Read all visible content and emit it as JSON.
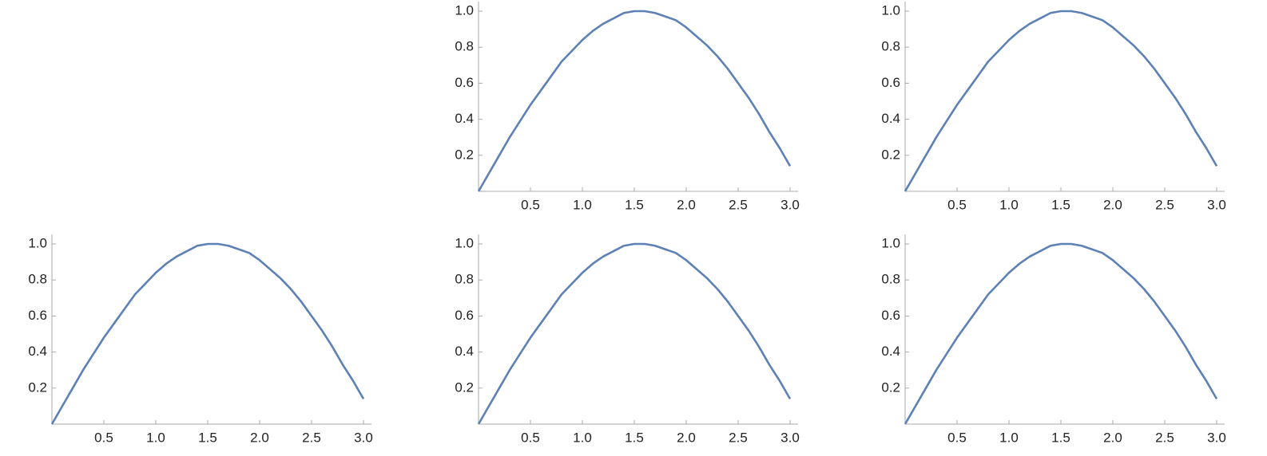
{
  "chart_data": [
    {
      "type": "line",
      "x": [
        0,
        0.1,
        0.2,
        0.3,
        0.4,
        0.5,
        0.6,
        0.7,
        0.8,
        0.9,
        1.0,
        1.1,
        1.2,
        1.3,
        1.4,
        1.5,
        1.6,
        1.7,
        1.8,
        1.9,
        2.0,
        2.1,
        2.2,
        2.3,
        2.4,
        2.5,
        2.6,
        2.7,
        2.8,
        2.9,
        3.0
      ],
      "values": [
        0,
        0.1,
        0.2,
        0.3,
        0.39,
        0.48,
        0.56,
        0.64,
        0.72,
        0.78,
        0.84,
        0.89,
        0.93,
        0.96,
        0.99,
        1.0,
        1.0,
        0.99,
        0.97,
        0.95,
        0.91,
        0.86,
        0.81,
        0.75,
        0.68,
        0.6,
        0.52,
        0.43,
        0.33,
        0.24,
        0.14
      ],
      "color": "#5e81b5",
      "xlim": [
        0,
        3
      ],
      "ylim": [
        0,
        1
      ],
      "xticks": [
        {
          "value": 0.5,
          "label": "0.5"
        },
        {
          "value": 1,
          "label": "1.0"
        },
        {
          "value": 1.5,
          "label": "1.5"
        },
        {
          "value": 2,
          "label": "2.0"
        },
        {
          "value": 2.5,
          "label": "2.5"
        },
        {
          "value": 3,
          "label": "3.0"
        }
      ],
      "yticks": [
        {
          "value": 0.2,
          "label": "0.2"
        },
        {
          "value": 0.4,
          "label": "0.4"
        },
        {
          "value": 0.6,
          "label": "0.6"
        },
        {
          "value": 0.8,
          "label": "0.8"
        },
        {
          "value": 1,
          "label": "1.0"
        }
      ]
    },
    {
      "type": "line",
      "x": [
        0,
        0.1,
        0.2,
        0.3,
        0.4,
        0.5,
        0.6,
        0.7,
        0.8,
        0.9,
        1.0,
        1.1,
        1.2,
        1.3,
        1.4,
        1.5,
        1.6,
        1.7,
        1.8,
        1.9,
        2.0,
        2.1,
        2.2,
        2.3,
        2.4,
        2.5,
        2.6,
        2.7,
        2.8,
        2.9,
        3.0
      ],
      "values": [
        0,
        0.1,
        0.2,
        0.3,
        0.39,
        0.48,
        0.56,
        0.64,
        0.72,
        0.78,
        0.84,
        0.89,
        0.93,
        0.96,
        0.99,
        1.0,
        1.0,
        0.99,
        0.97,
        0.95,
        0.91,
        0.86,
        0.81,
        0.75,
        0.68,
        0.6,
        0.52,
        0.43,
        0.33,
        0.24,
        0.14
      ],
      "color": "#5e81b5",
      "xlim": [
        0,
        3
      ],
      "ylim": [
        0,
        1
      ],
      "xticks": [
        {
          "value": 0.5,
          "label": "0.5"
        },
        {
          "value": 1,
          "label": "1.0"
        },
        {
          "value": 1.5,
          "label": "1.5"
        },
        {
          "value": 2,
          "label": "2.0"
        },
        {
          "value": 2.5,
          "label": "2.5"
        },
        {
          "value": 3,
          "label": "3.0"
        }
      ],
      "yticks": [
        {
          "value": 0.2,
          "label": "0.2"
        },
        {
          "value": 0.4,
          "label": "0.4"
        },
        {
          "value": 0.6,
          "label": "0.6"
        },
        {
          "value": 0.8,
          "label": "0.8"
        },
        {
          "value": 1,
          "label": "1.0"
        }
      ]
    },
    {
      "type": "line",
      "x": [
        0,
        0.1,
        0.2,
        0.3,
        0.4,
        0.5,
        0.6,
        0.7,
        0.8,
        0.9,
        1.0,
        1.1,
        1.2,
        1.3,
        1.4,
        1.5,
        1.6,
        1.7,
        1.8,
        1.9,
        2.0,
        2.1,
        2.2,
        2.3,
        2.4,
        2.5,
        2.6,
        2.7,
        2.8,
        2.9,
        3.0
      ],
      "values": [
        0,
        0.1,
        0.2,
        0.3,
        0.39,
        0.48,
        0.56,
        0.64,
        0.72,
        0.78,
        0.84,
        0.89,
        0.93,
        0.96,
        0.99,
        1.0,
        1.0,
        0.99,
        0.97,
        0.95,
        0.91,
        0.86,
        0.81,
        0.75,
        0.68,
        0.6,
        0.52,
        0.43,
        0.33,
        0.24,
        0.14
      ],
      "color": "#5e81b5",
      "xlim": [
        0,
        3
      ],
      "ylim": [
        0,
        1
      ],
      "xticks": [
        {
          "value": 0.5,
          "label": "0.5"
        },
        {
          "value": 1,
          "label": "1.0"
        },
        {
          "value": 1.5,
          "label": "1.5"
        },
        {
          "value": 2,
          "label": "2.0"
        },
        {
          "value": 2.5,
          "label": "2.5"
        },
        {
          "value": 3,
          "label": "3.0"
        }
      ],
      "yticks": [
        {
          "value": 0.2,
          "label": "0.2"
        },
        {
          "value": 0.4,
          "label": "0.4"
        },
        {
          "value": 0.6,
          "label": "0.6"
        },
        {
          "value": 0.8,
          "label": "0.8"
        },
        {
          "value": 1,
          "label": "1.0"
        }
      ]
    },
    {
      "type": "line",
      "x": [
        0,
        0.1,
        0.2,
        0.3,
        0.4,
        0.5,
        0.6,
        0.7,
        0.8,
        0.9,
        1.0,
        1.1,
        1.2,
        1.3,
        1.4,
        1.5,
        1.6,
        1.7,
        1.8,
        1.9,
        2.0,
        2.1,
        2.2,
        2.3,
        2.4,
        2.5,
        2.6,
        2.7,
        2.8,
        2.9,
        3.0
      ],
      "values": [
        0,
        0.1,
        0.2,
        0.3,
        0.39,
        0.48,
        0.56,
        0.64,
        0.72,
        0.78,
        0.84,
        0.89,
        0.93,
        0.96,
        0.99,
        1.0,
        1.0,
        0.99,
        0.97,
        0.95,
        0.91,
        0.86,
        0.81,
        0.75,
        0.68,
        0.6,
        0.52,
        0.43,
        0.33,
        0.24,
        0.14
      ],
      "color": "#5e81b5",
      "xlim": [
        0,
        3
      ],
      "ylim": [
        0,
        1
      ],
      "xticks": [
        {
          "value": 0.5,
          "label": "0.5"
        },
        {
          "value": 1,
          "label": "1.0"
        },
        {
          "value": 1.5,
          "label": "1.5"
        },
        {
          "value": 2,
          "label": "2.0"
        },
        {
          "value": 2.5,
          "label": "2.5"
        },
        {
          "value": 3,
          "label": "3.0"
        }
      ],
      "yticks": [
        {
          "value": 0.2,
          "label": "0.2"
        },
        {
          "value": 0.4,
          "label": "0.4"
        },
        {
          "value": 0.6,
          "label": "0.6"
        },
        {
          "value": 0.8,
          "label": "0.8"
        },
        {
          "value": 1,
          "label": "1.0"
        }
      ]
    },
    {
      "type": "line",
      "x": [
        0,
        0.1,
        0.2,
        0.3,
        0.4,
        0.5,
        0.6,
        0.7,
        0.8,
        0.9,
        1.0,
        1.1,
        1.2,
        1.3,
        1.4,
        1.5,
        1.6,
        1.7,
        1.8,
        1.9,
        2.0,
        2.1,
        2.2,
        2.3,
        2.4,
        2.5,
        2.6,
        2.7,
        2.8,
        2.9,
        3.0
      ],
      "values": [
        0,
        0.1,
        0.2,
        0.3,
        0.39,
        0.48,
        0.56,
        0.64,
        0.72,
        0.78,
        0.84,
        0.89,
        0.93,
        0.96,
        0.99,
        1.0,
        1.0,
        0.99,
        0.97,
        0.95,
        0.91,
        0.86,
        0.81,
        0.75,
        0.68,
        0.6,
        0.52,
        0.43,
        0.33,
        0.24,
        0.14
      ],
      "color": "#5e81b5",
      "xlim": [
        0,
        3
      ],
      "ylim": [
        0,
        1
      ],
      "xticks": [
        {
          "value": 0.5,
          "label": "0.5"
        },
        {
          "value": 1,
          "label": "1.0"
        },
        {
          "value": 1.5,
          "label": "1.5"
        },
        {
          "value": 2,
          "label": "2.0"
        },
        {
          "value": 2.5,
          "label": "2.5"
        },
        {
          "value": 3,
          "label": "3.0"
        }
      ],
      "yticks": [
        {
          "value": 0.2,
          "label": "0.2"
        },
        {
          "value": 0.4,
          "label": "0.4"
        },
        {
          "value": 0.6,
          "label": "0.6"
        },
        {
          "value": 0.8,
          "label": "0.8"
        },
        {
          "value": 1,
          "label": "1.0"
        }
      ]
    }
  ]
}
